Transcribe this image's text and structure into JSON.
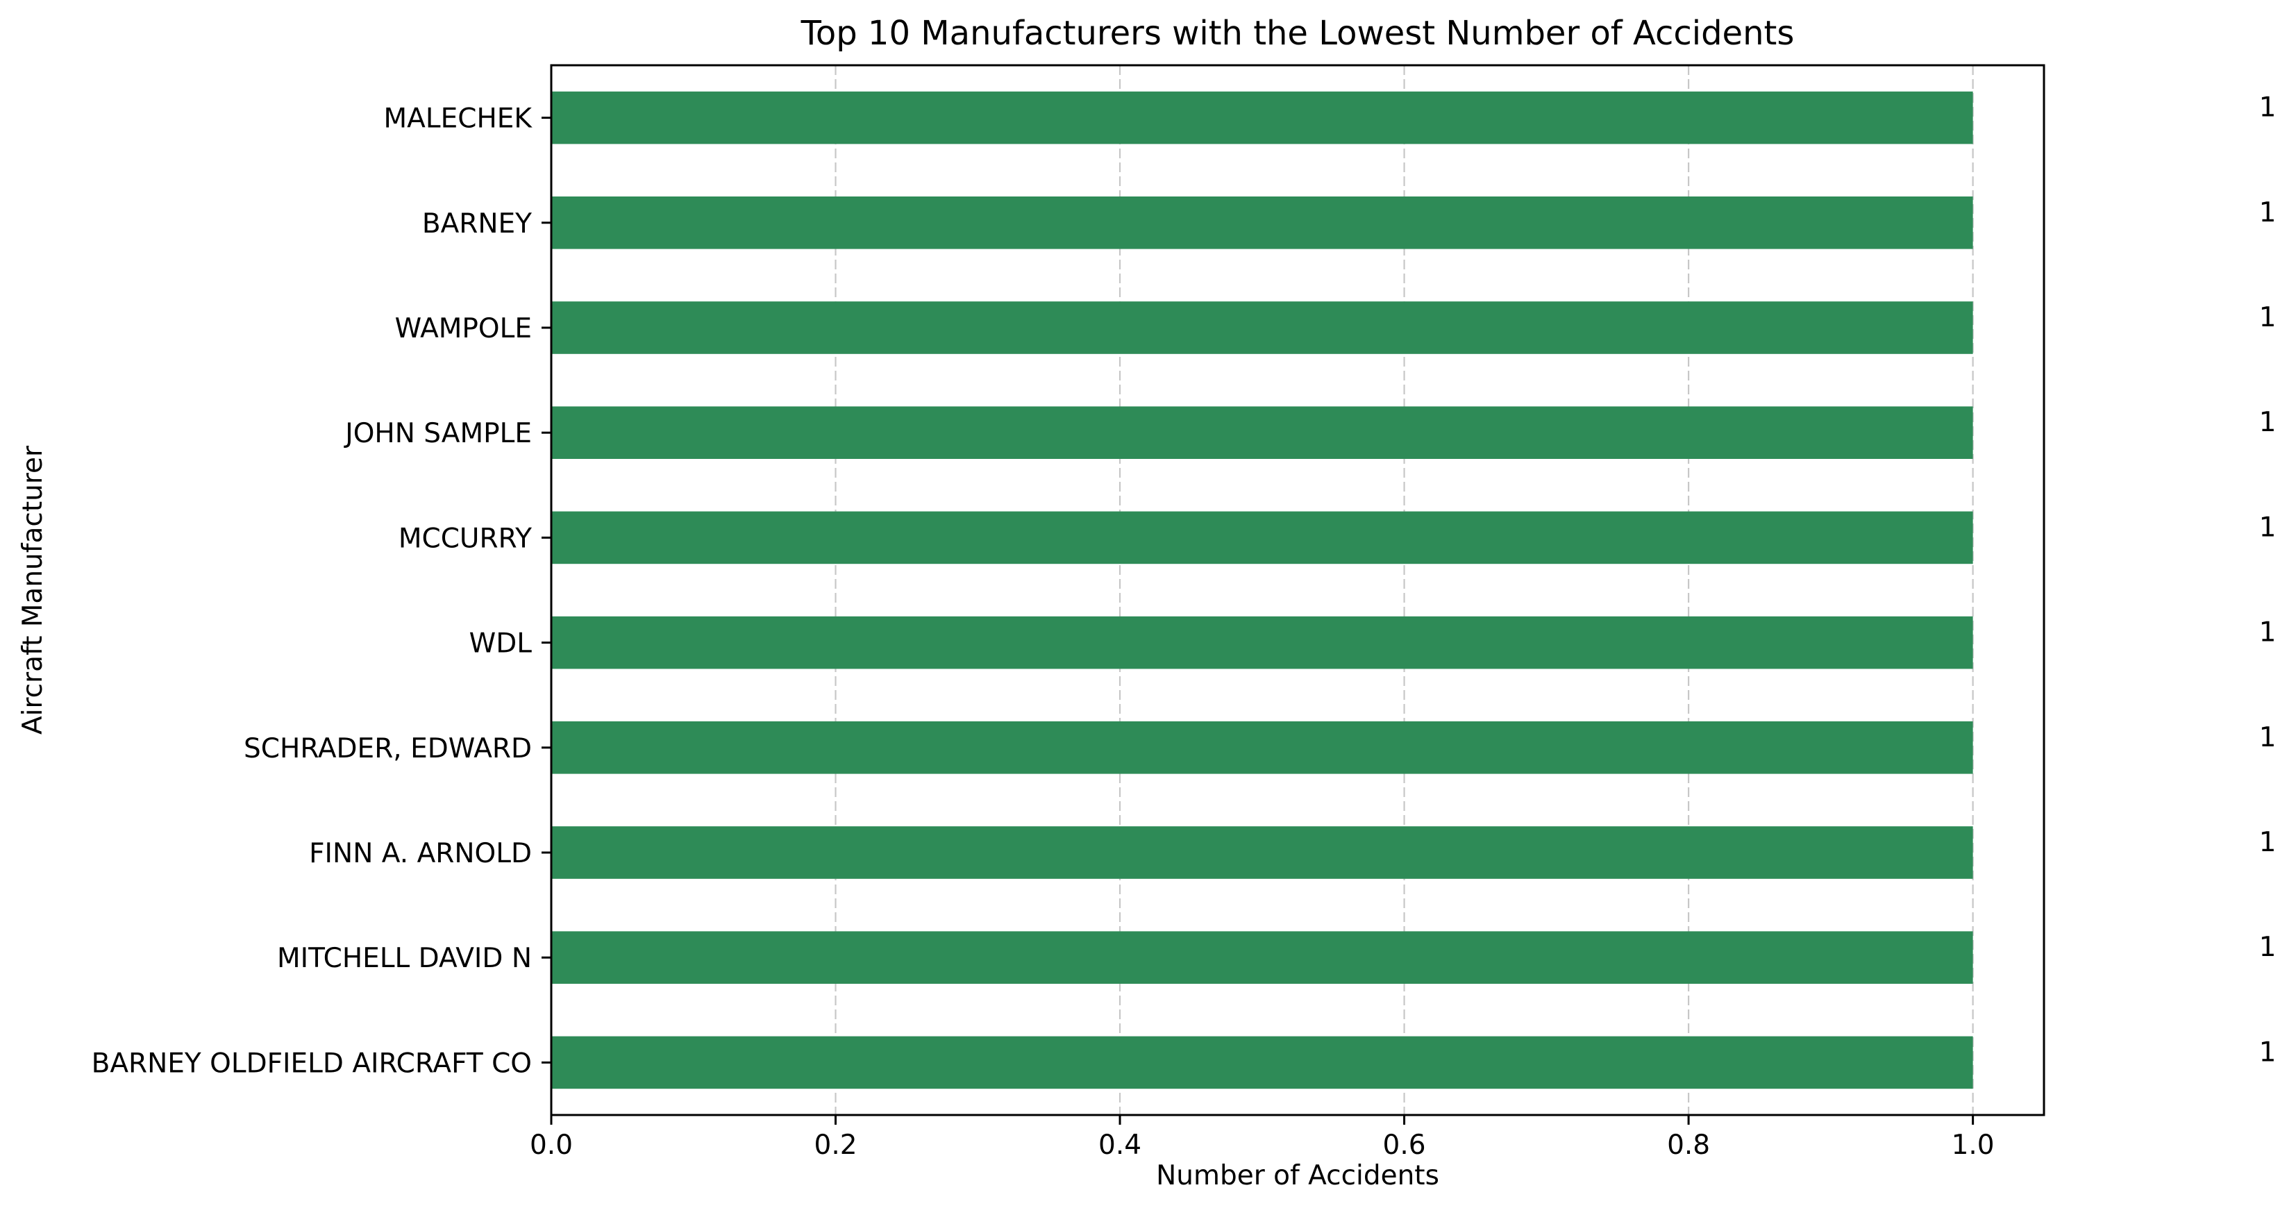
{
  "chart_data": {
    "type": "bar",
    "orientation": "horizontal",
    "title": "Top 10 Manufacturers with the Lowest Number of Accidents",
    "xlabel": "Number of Accidents",
    "ylabel": "Aircraft Manufacturer",
    "categories": [
      "MALECHEK",
      "BARNEY",
      "WAMPOLE",
      "JOHN SAMPLE",
      "MCCURRY",
      "WDL",
      "SCHRADER, EDWARD",
      "FINN A. ARNOLD",
      "MITCHELL DAVID N",
      "BARNEY OLDFIELD AIRCRAFT CO"
    ],
    "values": [
      1,
      1,
      1,
      1,
      1,
      1,
      1,
      1,
      1,
      1
    ],
    "data_labels": [
      "1",
      "1",
      "1",
      "1",
      "1",
      "1",
      "1",
      "1",
      "1",
      "1"
    ],
    "xlim": [
      0,
      1.05
    ],
    "xticks": [
      0.0,
      0.2,
      0.4,
      0.6,
      0.8,
      1.0
    ],
    "xtick_labels": [
      "0.0",
      "0.2",
      "0.4",
      "0.6",
      "0.8",
      "1.0"
    ],
    "grid": "x-axis, dashed",
    "legend": "none",
    "bar_color": "#2e8b57"
  }
}
